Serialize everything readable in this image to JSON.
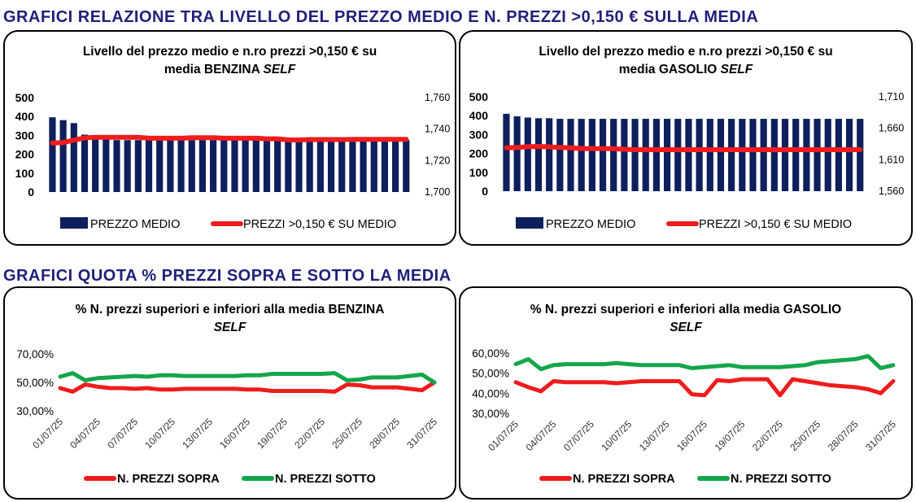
{
  "headings": {
    "top": "GRAFICI RELAZIONE TRA LIVELLO DEL PREZZO MEDIO E N. PREZZI >0,150 € SULLA MEDIA",
    "bottom": "GRAFICI QUOTA % PREZZI SOPRA E SOTTO LA MEDIA"
  },
  "colors": {
    "navy": "#0d1f5c",
    "red": "#ee1c1c",
    "green": "#13a64a",
    "heading": "#1f1f7a"
  },
  "panels": {
    "p1": {
      "title_line1": "Livello del prezzo medio e n.ro prezzi >0,150 € su",
      "title_line2": "media BENZINA ",
      "title_italic": "SELF"
    },
    "p2": {
      "title_line1": "Livello del prezzo medio e n.ro prezzi >0,150 € su",
      "title_line2": "media GASOLIO ",
      "title_italic": "SELF"
    },
    "p3": {
      "title_line1": "% N. prezzi superiori e inferiori alla media BENZINA",
      "title_line2": "",
      "title_italic": "SELF"
    },
    "p4": {
      "title_line1": "% N. prezzi superiori e inferiori alla media GASOLIO",
      "title_line2": "",
      "title_italic": "SELF"
    }
  },
  "chart_data": [
    {
      "type": "bar",
      "title": "Livello del prezzo medio e n.ro prezzi >0,150 € su media BENZINA SELF",
      "ylim": [
        0,
        500
      ],
      "y_ticks": [
        "500",
        "400",
        "300",
        "200",
        "100",
        "0"
      ],
      "y2lim": [
        1.7,
        1.76
      ],
      "y2_ticks": [
        "1,760",
        "1,740",
        "1,720",
        "1,700"
      ],
      "legend": "bottom",
      "series": [
        {
          "name": "PREZZO MEDIO",
          "axis": "right",
          "kind": "bar",
          "values": [
            1.7475,
            1.7457,
            1.7438,
            1.7365,
            1.7345,
            1.734,
            1.733,
            1.733,
            1.733,
            1.733,
            1.733,
            1.733,
            1.733,
            1.733,
            1.733,
            1.733,
            1.733,
            1.733,
            1.733,
            1.733,
            1.733,
            1.733,
            1.733,
            1.733,
            1.733,
            1.733,
            1.733,
            1.733,
            1.733,
            1.733,
            1.733,
            1.733,
            1.733,
            1.733
          ]
        },
        {
          "name": "PREZZI >0,150 € SU MEDIO",
          "axis": "left",
          "kind": "line",
          "values": [
            260,
            262,
            275,
            287,
            290,
            290,
            290,
            290,
            290,
            285,
            285,
            285,
            285,
            288,
            288,
            288,
            285,
            285,
            285,
            285,
            282,
            282,
            276,
            276,
            278,
            278,
            278,
            278,
            279,
            279,
            279,
            279,
            279,
            279
          ]
        }
      ]
    },
    {
      "type": "bar",
      "title": "Livello del prezzo medio e n.ro prezzi >0,150 € su media GASOLIO SELF",
      "ylim": [
        0,
        500
      ],
      "y_ticks": [
        "500",
        "400",
        "300",
        "200",
        "100",
        "0"
      ],
      "y2lim": [
        1.56,
        1.71
      ],
      "y2_ticks": [
        "1,710",
        "1,660",
        "1,610",
        "1,560"
      ],
      "legend": "bottom",
      "series": [
        {
          "name": "PREZZO MEDIO",
          "axis": "right",
          "kind": "bar",
          "values": [
            1.683,
            1.679,
            1.677,
            1.676,
            1.676,
            1.675,
            1.675,
            1.675,
            1.675,
            1.675,
            1.675,
            1.675,
            1.675,
            1.675,
            1.675,
            1.675,
            1.675,
            1.675,
            1.675,
            1.675,
            1.675,
            1.675,
            1.675,
            1.675,
            1.675,
            1.675,
            1.675,
            1.675,
            1.675,
            1.675,
            1.675,
            1.675,
            1.675,
            1.675
          ]
        },
        {
          "name": "PREZZI >0,150 € SU MEDIO",
          "axis": "left",
          "kind": "line",
          "values": [
            230,
            232,
            236,
            237,
            235,
            232,
            230,
            226,
            226,
            226,
            225,
            222,
            220,
            220,
            220,
            220,
            220,
            220,
            220,
            220,
            220,
            220,
            220,
            220,
            220,
            220,
            220,
            220,
            220,
            220,
            220,
            220,
            220,
            220
          ]
        }
      ]
    },
    {
      "type": "line",
      "title": "% N. prezzi superiori e inferiori alla media BENZINA SELF",
      "ylim": [
        30,
        70
      ],
      "y_ticks": [
        "70,00%",
        "50,00%",
        "30,00%"
      ],
      "x_ticks": [
        "01/07/25",
        "04/07/25",
        "07/07/25",
        "10/07/25",
        "13/07/25",
        "16/07/25",
        "19/07/25",
        "22/07/25",
        "25/07/25",
        "28/07/25",
        "31/07/25"
      ],
      "legend": "bottom",
      "series": [
        {
          "name": "N. PREZZI SOPRA",
          "values": [
            46,
            43.5,
            48.5,
            47,
            46,
            46,
            45.5,
            46,
            45,
            45,
            45.5,
            45.5,
            45.5,
            45.5,
            45.5,
            45,
            45,
            44,
            44,
            44,
            44,
            44,
            43.5,
            48.5,
            48,
            46.5,
            46.5,
            46.5,
            45.5,
            44.5,
            50
          ]
        },
        {
          "name": "N. PREZZI SOTTO",
          "values": [
            54,
            56.5,
            51.5,
            53,
            53.5,
            54,
            54.5,
            54,
            55,
            55,
            54.5,
            54.5,
            54.5,
            54.5,
            54.5,
            55,
            55,
            56,
            56,
            56,
            56,
            56,
            56.5,
            51.5,
            52,
            53.5,
            53.5,
            53.5,
            54.5,
            55.5,
            50
          ]
        }
      ]
    },
    {
      "type": "line",
      "title": "% N. prezzi superiori e inferiori alla media GASOLIO SELF",
      "ylim": [
        30,
        60
      ],
      "y_ticks": [
        "60,00%",
        "50,00%",
        "40,00%",
        "30,00%"
      ],
      "x_ticks": [
        "01/07/25",
        "04/07/25",
        "07/07/25",
        "10/07/25",
        "13/07/25",
        "16/07/25",
        "19/07/25",
        "22/07/25",
        "25/07/25",
        "28/07/25",
        "31/07/25"
      ],
      "legend": "bottom",
      "series": [
        {
          "name": "N. PREZZI SOPRA",
          "values": [
            45.5,
            43,
            41,
            46,
            45.5,
            45.5,
            45.5,
            45.5,
            45,
            45.5,
            46,
            46,
            46,
            46,
            39.5,
            39,
            46.5,
            46,
            47,
            47,
            47,
            39,
            47,
            46,
            45,
            44,
            43.5,
            43,
            42,
            40,
            46
          ]
        },
        {
          "name": "N. PREZZI SOTTO",
          "values": [
            54.5,
            57,
            52,
            54,
            54.5,
            54.5,
            54.5,
            54.5,
            55,
            54.5,
            54,
            54,
            54,
            54,
            52.5,
            53,
            53.5,
            54,
            53,
            53,
            53,
            53,
            53.5,
            54,
            55.5,
            56,
            56.5,
            57,
            58.5,
            52.5,
            54
          ]
        }
      ]
    }
  ]
}
